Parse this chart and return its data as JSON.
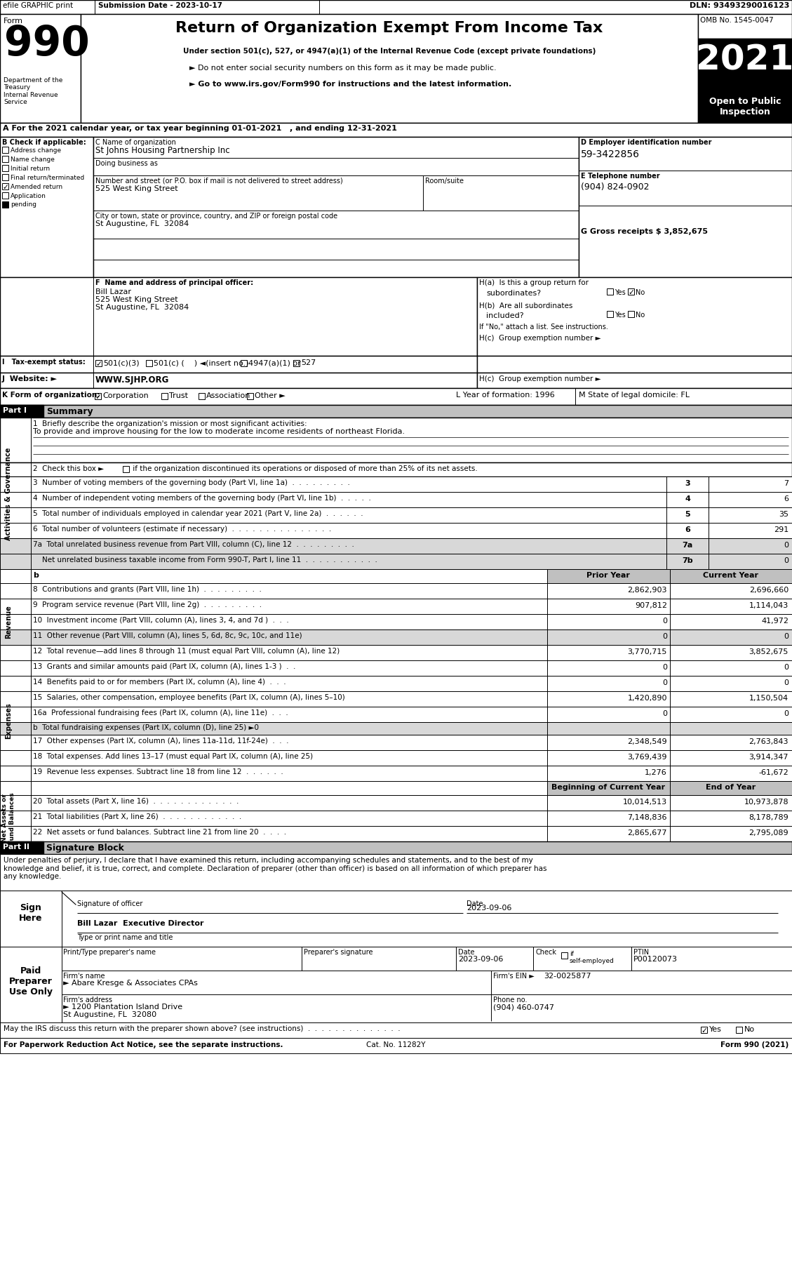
{
  "efile_line": "efile GRAPHIC print",
  "submission_date": "Submission Date - 2023-10-17",
  "dln": "DLN: 93493290016123",
  "title": "Return of Organization Exempt From Income Tax",
  "subtitle1": "Under section 501(c), 527, or 4947(a)(1) of the Internal Revenue Code (except private foundations)",
  "bullet1": "► Do not enter social security numbers on this form as it may be made public.",
  "bullet2": "► Go to www.irs.gov/Form990 for instructions and the latest information.",
  "omb": "OMB No. 1545-0047",
  "year": "2021",
  "dept_label": "Department of the\nTreasury\nInternal Revenue\nService",
  "section_a": "A For the 2021 calendar year, or tax year beginning 01-01-2021   , and ending 12-31-2021",
  "b_label": "B Check if applicable:",
  "address_change": "Address change",
  "name_change": "Name change",
  "initial_return": "Initial return",
  "final_return": "Final return/terminated",
  "amended_return": "Amended return",
  "c_label": "C Name of organization",
  "org_name": "St Johns Housing Partnership Inc",
  "dba_label": "Doing business as",
  "street_label": "Number and street (or P.O. box if mail is not delivered to street address)",
  "street": "525 West King Street",
  "room_label": "Room/suite",
  "city_label": "City or town, state or province, country, and ZIP or foreign postal code",
  "city": "St Augustine, FL  32084",
  "d_label": "D Employer identification number",
  "ein": "59-3422856",
  "e_label": "E Telephone number",
  "phone": "(904) 824-0902",
  "g_label": "G Gross receipts $ 3,852,675",
  "f_label": "F  Name and address of principal officer:",
  "officer_name": "Bill Lazar",
  "officer_street": "525 West King Street",
  "officer_city": "St Augustine, FL  32084",
  "ha_label": "H(a)  Is this a group return for",
  "ha_sub": "subordinates?",
  "hb_label": "H(b)  Are all subordinates",
  "hb_sub": "included?",
  "hb_note": "If \"No,\" attach a list. See instructions.",
  "hc_label": "H(c)  Group exemption number ►",
  "i_label": "I   Tax-exempt status:",
  "i_501c3": "501(c)(3)",
  "i_501c": "501(c) (    ) ◄(insert no.)",
  "i_4947": "4947(a)(1) or",
  "i_527": "527",
  "j_label": "J  Website: ►",
  "website": "WWW.SJHP.ORG",
  "k_label": "K Form of organization:",
  "k_corp": "Corporation",
  "k_trust": "Trust",
  "k_assoc": "Association",
  "k_other": "Other ►",
  "l_label": "L Year of formation: 1996",
  "m_label": "M State of legal domicile: FL",
  "part1_label": "Part I",
  "part1_title": "Summary",
  "line1_label": "1  Briefly describe the organization's mission or most significant activities:",
  "line1_text": "To provide and improve housing for the low to moderate income residents of northeast Florida.",
  "line2_label": "2  Check this box ►",
  "line2_text": " if the organization discontinued its operations or disposed of more than 25% of its net assets.",
  "line3_label": "3  Number of voting members of the governing body (Part VI, line 1a)  .  .  .  .  .  .  .  .  .",
  "line3_num": "3",
  "line3_val": "7",
  "line4_label": "4  Number of independent voting members of the governing body (Part VI, line 1b)  .  .  .  .  .",
  "line4_num": "4",
  "line4_val": "6",
  "line5_label": "5  Total number of individuals employed in calendar year 2021 (Part V, line 2a)  .  .  .  .  .  .",
  "line5_num": "5",
  "line5_val": "35",
  "line6_label": "6  Total number of volunteers (estimate if necessary)  .  .  .  .  .  .  .  .  .  .  .  .  .  .  .",
  "line6_num": "6",
  "line6_val": "291",
  "line7a_label": "7a  Total unrelated business revenue from Part VIII, column (C), line 12  .  .  .  .  .  .  .  .  .",
  "line7a_num": "7a",
  "line7a_val": "0",
  "line7b_label": "    Net unrelated business taxable income from Form 990-T, Part I, line 11  .  .  .  .  .  .  .  .  .  .  .",
  "line7b_num": "7b",
  "line7b_val": "0",
  "col_prior": "Prior Year",
  "col_current": "Current Year",
  "line8_label": "8  Contributions and grants (Part VIII, line 1h)  .  .  .  .  .  .  .  .  .",
  "line8_prior": "2,862,903",
  "line8_current": "2,696,660",
  "line9_label": "9  Program service revenue (Part VIII, line 2g)  .  .  .  .  .  .  .  .  .",
  "line9_prior": "907,812",
  "line9_current": "1,114,043",
  "line10_label": "10  Investment income (Part VIII, column (A), lines 3, 4, and 7d )  .  .  .",
  "line10_prior": "0",
  "line10_current": "41,972",
  "line11_label": "11  Other revenue (Part VIII, column (A), lines 5, 6d, 8c, 9c, 10c, and 11e)",
  "line11_prior": "0",
  "line11_current": "0",
  "line12_label": "12  Total revenue—add lines 8 through 11 (must equal Part VIII, column (A), line 12)",
  "line12_prior": "3,770,715",
  "line12_current": "3,852,675",
  "line13_label": "13  Grants and similar amounts paid (Part IX, column (A), lines 1-3 )  .  .",
  "line13_prior": "0",
  "line13_current": "0",
  "line14_label": "14  Benefits paid to or for members (Part IX, column (A), line 4)  .  .  .",
  "line14_prior": "0",
  "line14_current": "0",
  "line15_label": "15  Salaries, other compensation, employee benefits (Part IX, column (A), lines 5–10)",
  "line15_prior": "1,420,890",
  "line15_current": "1,150,504",
  "line16a_label": "16a  Professional fundraising fees (Part IX, column (A), line 11e)  .  .  .",
  "line16a_prior": "0",
  "line16a_current": "0",
  "line16b_label": "b  Total fundraising expenses (Part IX, column (D), line 25) ►0",
  "line17_label": "17  Other expenses (Part IX, column (A), lines 11a-11d, 11f-24e)  .  .  .",
  "line17_prior": "2,348,549",
  "line17_current": "2,763,843",
  "line18_label": "18  Total expenses. Add lines 13–17 (must equal Part IX, column (A), line 25)",
  "line18_prior": "3,769,439",
  "line18_current": "3,914,347",
  "line19_label": "19  Revenue less expenses. Subtract line 18 from line 12  .  .  .  .  .  .",
  "line19_prior": "1,276",
  "line19_current": "-61,672",
  "col_begin": "Beginning of Current Year",
  "col_end": "End of Year",
  "line20_label": "20  Total assets (Part X, line 16)  .  .  .  .  .  .  .  .  .  .  .  .  .",
  "line20_begin": "10,014,513",
  "line20_end": "10,973,878",
  "line21_label": "21  Total liabilities (Part X, line 26)  .  .  .  .  .  .  .  .  .  .  .  .",
  "line21_begin": "7,148,836",
  "line21_end": "8,178,789",
  "line22_label": "22  Net assets or fund balances. Subtract line 21 from line 20  .  .  .  .",
  "line22_begin": "2,865,677",
  "line22_end": "2,795,089",
  "part2_label": "Part II",
  "part2_title": "Signature Block",
  "sig_declaration": "Under penalties of perjury, I declare that I have examined this return, including accompanying schedules and statements, and to the best of my\nknowledge and belief, it is true, correct, and complete. Declaration of preparer (other than officer) is based on all information of which preparer has\nany knowledge.",
  "sig_date": "2023-09-06",
  "sig_label": "Signature of officer",
  "sig_date_label": "Date",
  "sig_name": "Bill Lazar  Executive Director",
  "sig_name_label": "Type or print name and title",
  "prep_name_label": "Print/Type preparer's name",
  "prep_sig_label": "Preparer's signature",
  "prep_date_label": "Date",
  "prep_check_label": "Check",
  "prep_ptin_label": "PTIN",
  "prep_date": "2023-09-06",
  "prep_ptin": "P00120073",
  "prep_firm_label": "Firm's name",
  "prep_firm": "► Abare Kresge & Associates CPAs",
  "prep_firm_ein_label": "Firm's EIN ►",
  "prep_firm_ein": "32-0025877",
  "prep_addr_label": "Firm's address",
  "prep_addr": "► 1200 Plantation Island Drive",
  "prep_city": "St Augustine, FL  32080",
  "prep_phone_label": "Phone no.",
  "prep_phone": "(904) 460-0747",
  "discuss_label": "May the IRS discuss this return with the preparer shown above? (see instructions)  .  .  .  .  .  .  .  .  .  .  .  .  .  .",
  "footer1": "For Paperwork Reduction Act Notice, see the separate instructions.",
  "footer_cat": "Cat. No. 11282Y",
  "footer_form": "Form 990 (2021)"
}
